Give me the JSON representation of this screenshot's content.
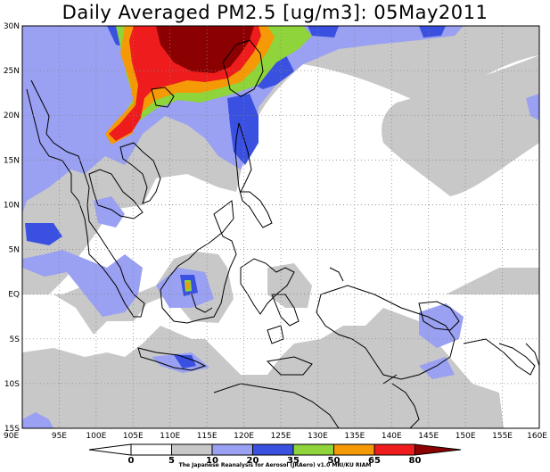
{
  "title": "Daily Averaged PM2.5 [ug/m3]: 05May2011",
  "credit": "The Japanese Reanalysis for Aerosol (JRAero) v1.0 MRI/KU RIAM",
  "map": {
    "lon_range": [
      90,
      160
    ],
    "lat_range": [
      -15,
      30
    ],
    "lat_labels": [
      "30N",
      "25N",
      "20N",
      "15N",
      "10N",
      "5N",
      "EQ",
      "5S",
      "10S",
      "15S"
    ],
    "lon_labels": [
      "90E",
      "95E",
      "100E",
      "105E",
      "110E",
      "115E",
      "120E",
      "125E",
      "130E",
      "135E",
      "140E",
      "145E",
      "150E",
      "155E",
      "160E"
    ],
    "gridlines": true,
    "gridline_style": "dotted"
  },
  "colorbar": {
    "levels": [
      "0",
      "5",
      "10",
      "20",
      "35",
      "50",
      "65",
      "80"
    ],
    "colors": {
      "lt5": "#ffffff",
      "5-10": "#ffffff",
      "10-20": "#c8c8c8",
      "20-35": "#9aa0f2",
      "35-50": "#3a50e0",
      "50-65": "#8ed43a",
      "65-80": "#f59a06",
      "gt80": "#8b0000",
      "red": "#ee1c1c"
    }
  }
}
